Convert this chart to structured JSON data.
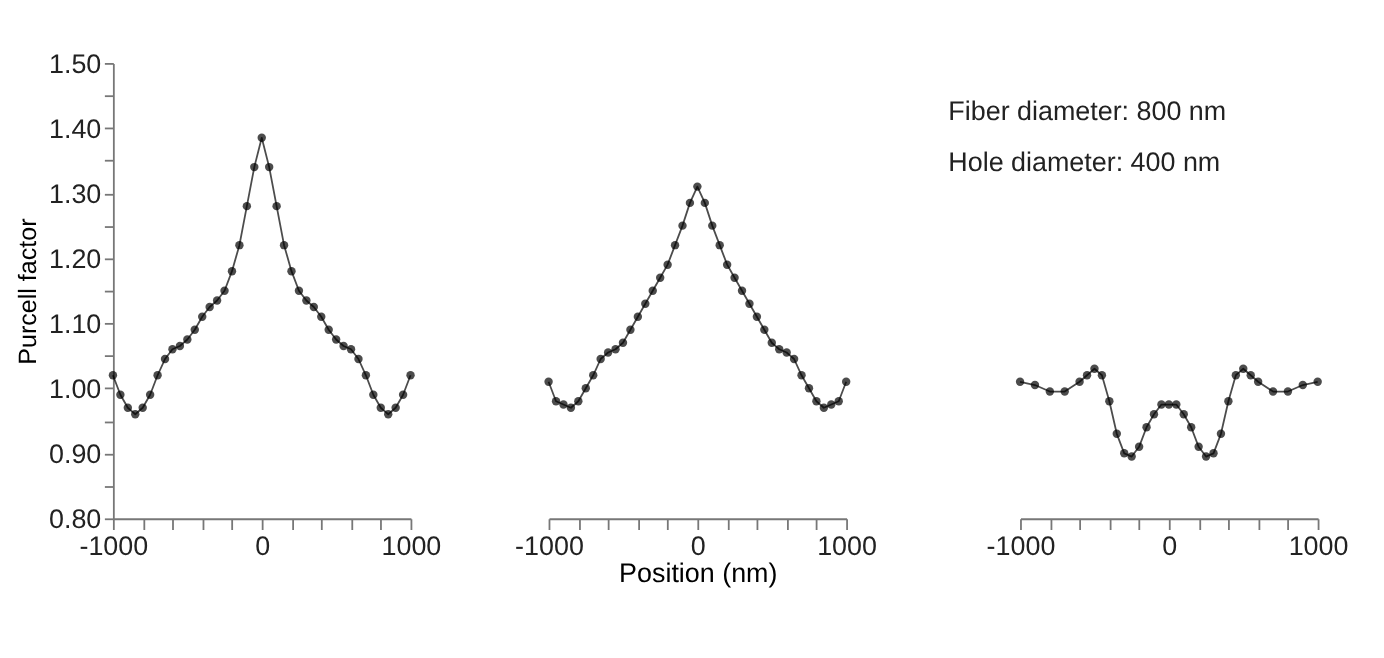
{
  "chart_data": [
    {
      "type": "line",
      "ylabel": "Purcell factor",
      "marker": "circle",
      "grid": false,
      "x": [
        -1000,
        -950,
        -900,
        -850,
        -800,
        -750,
        -700,
        -650,
        -600,
        -550,
        -500,
        -450,
        -400,
        -350,
        -300,
        -250,
        -200,
        -150,
        -100,
        -50,
        0,
        50,
        100,
        150,
        200,
        250,
        300,
        350,
        400,
        450,
        500,
        550,
        600,
        650,
        700,
        750,
        800,
        850,
        900,
        950,
        1000
      ],
      "series": [
        {
          "color": "#000000",
          "values": [
            1.02,
            0.99,
            0.97,
            0.96,
            0.97,
            0.99,
            1.02,
            1.045,
            1.06,
            1.065,
            1.075,
            1.09,
            1.11,
            1.125,
            1.135,
            1.15,
            1.18,
            1.22,
            1.28,
            1.34,
            1.385,
            1.34,
            1.28,
            1.22,
            1.18,
            1.15,
            1.135,
            1.125,
            1.11,
            1.09,
            1.075,
            1.065,
            1.06,
            1.045,
            1.02,
            0.99,
            0.97,
            0.96,
            0.97,
            0.99,
            1.02
          ]
        }
      ],
      "xlim": [
        -1000,
        1000
      ],
      "xticks": [
        -1000,
        {
          "value": -800,
          "label": null
        },
        {
          "value": -600,
          "label": null
        },
        {
          "value": -400,
          "label": null
        },
        {
          "value": -200,
          "label": null
        },
        0,
        {
          "value": 200,
          "label": null
        },
        {
          "value": 400,
          "label": null
        },
        {
          "value": 600,
          "label": null
        },
        {
          "value": 800,
          "label": null
        },
        1000
      ],
      "ylim": [
        0.8,
        1.5
      ],
      "yticks": [
        {
          "value": 0.8,
          "label": "0.80"
        },
        {
          "value": 0.85,
          "label": null
        },
        {
          "value": 0.9,
          "label": "0.90"
        },
        {
          "value": 0.95,
          "label": null
        },
        {
          "value": 1.0,
          "label": "1.00"
        },
        {
          "value": 1.05,
          "label": null
        },
        {
          "value": 1.1,
          "label": "1.10"
        },
        {
          "value": 1.15,
          "label": null
        },
        {
          "value": 1.2,
          "label": "1.20"
        },
        {
          "value": 1.25,
          "label": null
        },
        {
          "value": 1.3,
          "label": "1.30"
        },
        {
          "value": 1.35,
          "label": null
        },
        {
          "value": 1.4,
          "label": "1.40"
        },
        {
          "value": 1.45,
          "label": null
        },
        {
          "value": 1.5,
          "label": "1.50"
        }
      ]
    },
    {
      "type": "line",
      "xlabel": "Position (nm)",
      "marker": "circle",
      "grid": false,
      "tick_labels": "x",
      "x": [
        -1000,
        -950,
        -900,
        -850,
        -800,
        -750,
        -700,
        -650,
        -600,
        -550,
        -500,
        -450,
        -400,
        -350,
        -300,
        -250,
        -200,
        -150,
        -100,
        -50,
        0,
        50,
        100,
        150,
        200,
        250,
        300,
        350,
        400,
        450,
        500,
        550,
        600,
        650,
        700,
        750,
        800,
        850,
        900,
        950,
        1000
      ],
      "series": [
        {
          "color": "#000000",
          "values": [
            1.01,
            0.98,
            0.975,
            0.97,
            0.98,
            1.0,
            1.02,
            1.045,
            1.055,
            1.06,
            1.07,
            1.09,
            1.11,
            1.13,
            1.15,
            1.17,
            1.19,
            1.22,
            1.25,
            1.285,
            1.31,
            1.285,
            1.25,
            1.22,
            1.19,
            1.17,
            1.15,
            1.13,
            1.11,
            1.09,
            1.07,
            1.06,
            1.055,
            1.045,
            1.02,
            1.0,
            0.98,
            0.97,
            0.975,
            0.98,
            1.01
          ]
        }
      ],
      "xlim": [
        -1000,
        1000
      ],
      "xticks": [
        -1000,
        {
          "value": -800,
          "label": null
        },
        {
          "value": -600,
          "label": null
        },
        {
          "value": -400,
          "label": null
        },
        {
          "value": -200,
          "label": null
        },
        0,
        {
          "value": 200,
          "label": null
        },
        {
          "value": 400,
          "label": null
        },
        {
          "value": 600,
          "label": null
        },
        {
          "value": 800,
          "label": null
        },
        1000
      ],
      "ylim": [
        0.8,
        1.5
      ]
    },
    {
      "type": "line",
      "marker": "circle",
      "grid": false,
      "tick_labels": "x",
      "annotations": [
        "Fiber diameter: 800 nm",
        "Hole diameter: 400 nm"
      ],
      "x": [
        -1000,
        -900,
        -800,
        -700,
        -600,
        -550,
        -500,
        -450,
        -400,
        -350,
        -300,
        -250,
        -200,
        -150,
        -100,
        -50,
        0,
        50,
        100,
        150,
        200,
        250,
        300,
        350,
        400,
        450,
        500,
        550,
        600,
        700,
        800,
        900,
        1000
      ],
      "series": [
        {
          "color": "#000000",
          "values": [
            1.01,
            1.005,
            0.995,
            0.995,
            1.01,
            1.02,
            1.03,
            1.02,
            0.98,
            0.93,
            0.9,
            0.895,
            0.91,
            0.94,
            0.96,
            0.975,
            0.975,
            0.975,
            0.96,
            0.94,
            0.91,
            0.895,
            0.9,
            0.93,
            0.98,
            1.02,
            1.03,
            1.02,
            1.01,
            0.995,
            0.995,
            1.005,
            1.01
          ]
        }
      ],
      "xlim": [
        -1000,
        1000
      ],
      "xticks": [
        -1000,
        {
          "value": -800,
          "label": null
        },
        {
          "value": -600,
          "label": null
        },
        {
          "value": -400,
          "label": null
        },
        {
          "value": -200,
          "label": null
        },
        0,
        {
          "value": 200,
          "label": null
        },
        {
          "value": 400,
          "label": null
        },
        {
          "value": 600,
          "label": null
        },
        {
          "value": 800,
          "label": null
        },
        1000
      ],
      "ylim": [
        0.8,
        1.5
      ]
    }
  ]
}
